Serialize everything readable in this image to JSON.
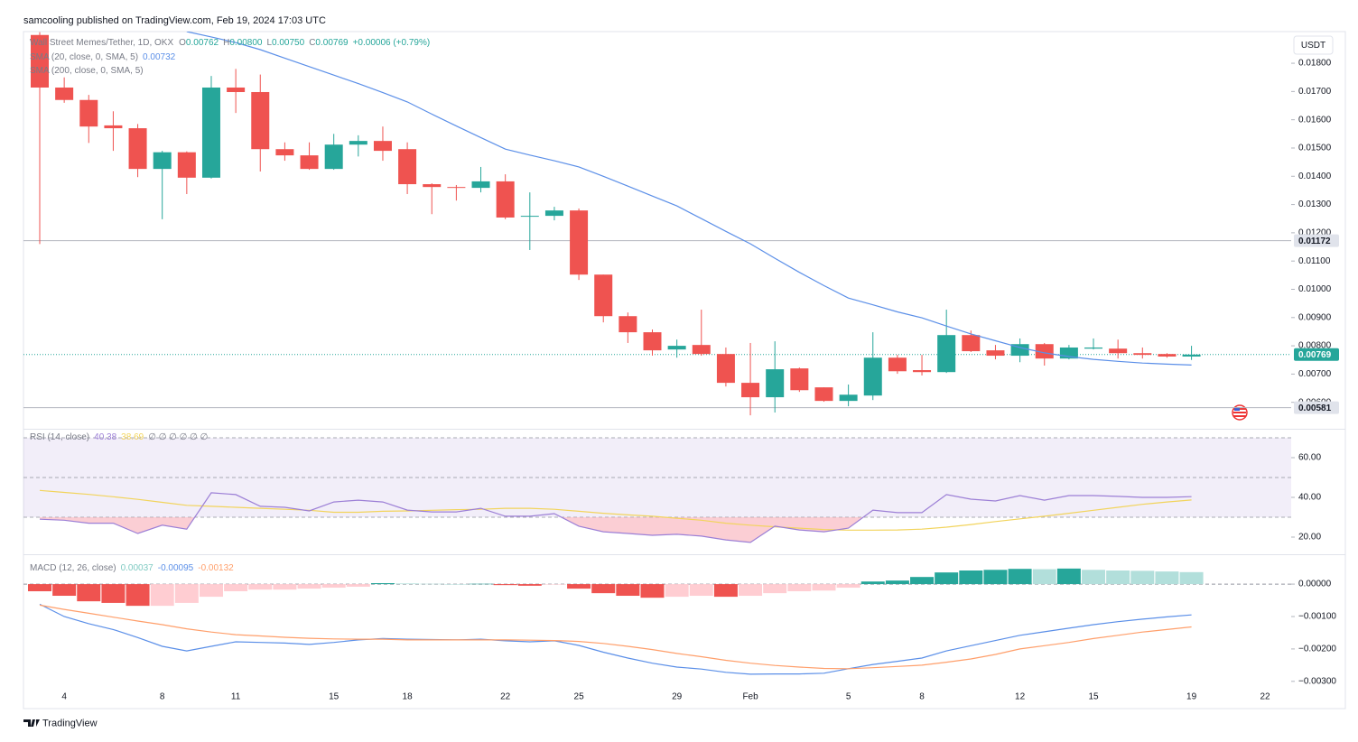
{
  "header": "samcooling published on TradingView.com, Feb 19, 2024 17:03 UTC",
  "footer": "TradingView",
  "chart_data": [
    {
      "type": "candlestick",
      "title": "Wall Street Memes/Tether, 1D, OKX",
      "ohlc_legend": [
        {
          "label": "O",
          "value": "0.00762"
        },
        {
          "label": "H",
          "value": "0.00800"
        },
        {
          "label": "L",
          "value": "0.00750"
        },
        {
          "label": "C",
          "value": "0.00769"
        }
      ],
      "change": "+0.00006 (+0.79%)",
      "currency": "USDT",
      "up_color": "#26a69a",
      "down_color": "#ef5350",
      "open": [
        0.019,
        0.01714,
        0.0167,
        0.0158,
        0.0157,
        0.01426,
        0.01485,
        0.01395,
        0.01714,
        0.01698,
        0.01496,
        0.01474,
        0.01426,
        0.01512,
        0.01525,
        0.01496,
        0.01372,
        0.01362,
        0.01359,
        0.01382,
        0.01257,
        0.0126,
        0.01279,
        0.01052,
        0.00905,
        0.00848,
        0.00787,
        0.00803,
        0.00771,
        0.00669,
        0.00618,
        0.0072,
        0.00653,
        0.00605,
        0.00624,
        0.00758,
        0.00714,
        0.00707,
        0.00838,
        0.00784,
        0.00765,
        0.00806,
        0.00755,
        0.0079,
        0.0079,
        0.00774,
        0.00771,
        0.00762,
        null,
        null,
        null
      ],
      "high": [
        0.0191,
        0.0175,
        0.01688,
        0.0163,
        0.01585,
        0.0149,
        0.01488,
        0.01755,
        0.0178,
        0.0176,
        0.0152,
        0.0152,
        0.0155,
        0.01545,
        0.01576,
        0.0152,
        0.01375,
        0.01369,
        0.01433,
        0.01407,
        0.01343,
        0.01292,
        0.01286,
        0.01052,
        0.00918,
        0.00858,
        0.00822,
        0.00928,
        0.00794,
        0.0081,
        0.00816,
        0.00723,
        0.00653,
        0.00663,
        0.00848,
        0.00768,
        0.00768,
        0.00928,
        0.00854,
        0.00803,
        0.00826,
        0.0081,
        0.00803,
        0.00826,
        0.00822,
        0.00794,
        0.00774,
        0.008,
        null,
        null,
        null
      ],
      "low": [
        0.0116,
        0.0166,
        0.01518,
        0.0149,
        0.01397,
        0.01248,
        0.01337,
        0.01392,
        0.01624,
        0.01417,
        0.01455,
        0.01423,
        0.01423,
        0.0147,
        0.01455,
        0.01337,
        0.01266,
        0.01314,
        0.01343,
        0.01248,
        0.01139,
        0.01244,
        0.01033,
        0.00883,
        0.0081,
        0.00765,
        0.00758,
        0.00765,
        0.00656,
        0.00554,
        0.00564,
        0.00637,
        0.00602,
        0.00586,
        0.00608,
        0.00701,
        0.00695,
        0.00704,
        0.00778,
        0.00752,
        0.00742,
        0.0073,
        0.00752,
        0.00787,
        0.00755,
        0.00755,
        0.00758,
        0.0075,
        null,
        null,
        null
      ],
      "close": [
        0.01714,
        0.0167,
        0.01576,
        0.0157,
        0.01426,
        0.01485,
        0.01395,
        0.01714,
        0.01698,
        0.01496,
        0.01474,
        0.01426,
        0.01512,
        0.01525,
        0.0149,
        0.01372,
        0.01362,
        0.01359,
        0.01382,
        0.01254,
        0.0126,
        0.01279,
        0.01052,
        0.00905,
        0.00848,
        0.00784,
        0.008,
        0.00771,
        0.00669,
        0.00618,
        0.00717,
        0.00643,
        0.00605,
        0.00627,
        0.00758,
        0.0071,
        0.00707,
        0.00838,
        0.00781,
        0.00765,
        0.00806,
        0.00755,
        0.00794,
        0.00794,
        0.00774,
        0.00768,
        0.00762,
        0.00769,
        null,
        null,
        null
      ],
      "series": [
        {
          "name": "SMA (20, close, 0, SMA, 5)",
          "value_label": "0.00732",
          "color": "#5b8fe8",
          "values": [
            null,
            null,
            null,
            null,
            null,
            null,
            0.01912,
            0.01893,
            0.01873,
            0.01848,
            0.01818,
            0.01788,
            0.01758,
            0.01728,
            0.01696,
            0.01663,
            0.0162,
            0.01578,
            0.01537,
            0.01496,
            0.01475,
            0.01455,
            0.01433,
            0.014,
            0.01365,
            0.0133,
            0.01295,
            0.0125,
            0.01205,
            0.01161,
            0.0111,
            0.0106,
            0.01013,
            0.00969,
            0.00945,
            0.0092,
            0.00899,
            0.0087,
            0.00842,
            0.00818,
            0.00794,
            0.00775,
            0.00762,
            0.00752,
            0.00745,
            0.00739,
            0.00735,
            0.00732,
            null,
            null,
            null
          ]
        }
      ],
      "extra_legend": "SMA (200, close, 0, SMA, 5)",
      "ylim": [
        0.00516,
        0.01912
      ],
      "yticks": [
        {
          "value": 0.018,
          "label": "0.01800"
        },
        {
          "value": 0.017,
          "label": "0.01700"
        },
        {
          "value": 0.016,
          "label": "0.01600"
        },
        {
          "value": 0.015,
          "label": "0.01500"
        },
        {
          "value": 0.014,
          "label": "0.01400"
        },
        {
          "value": 0.013,
          "label": "0.01300"
        },
        {
          "value": 0.012,
          "label": "0.01200"
        },
        {
          "value": 0.011,
          "label": "0.01100"
        },
        {
          "value": 0.01,
          "label": "0.01000"
        },
        {
          "value": 0.009,
          "label": "0.00900"
        },
        {
          "value": 0.008,
          "label": "0.00800"
        },
        {
          "value": 0.007,
          "label": "0.00700"
        },
        {
          "value": 0.006,
          "label": "0.00600"
        }
      ],
      "price_lines": [
        {
          "value": 0.01172,
          "label": "0.01172"
        },
        {
          "value": 0.00581,
          "label": "0.00581"
        }
      ],
      "last_price": {
        "value": 0.00769,
        "label": "0.00769"
      }
    },
    {
      "type": "rsi",
      "title": "RSI (14, close)",
      "legend_extra": "∅ ∅ ∅ ∅ ∅ ∅",
      "series": [
        {
          "value_label": "40.38",
          "color": "#9c7fd6",
          "values": [
            29,
            28.5,
            27,
            27,
            21.8,
            26,
            24,
            42.3,
            41.4,
            35.5,
            35,
            33.2,
            37.7,
            38.6,
            37.7,
            33.6,
            32.7,
            32.7,
            34.5,
            30.5,
            30.5,
            31.8,
            25.5,
            22.7,
            21.8,
            20.9,
            21.4,
            20.5,
            18.6,
            17.3,
            25.5,
            23.6,
            22.7,
            24.5,
            33.6,
            32.3,
            32.3,
            41.4,
            39.1,
            38.2,
            40.9,
            38.6,
            40.9,
            40.9,
            40.5,
            40,
            40,
            40.38,
            null,
            null,
            null
          ]
        },
        {
          "value_label": "38.69",
          "color": "#f2d45c",
          "values": [
            43.5,
            42.5,
            41.5,
            40.3,
            39,
            37.5,
            36,
            35.5,
            35,
            34.5,
            34,
            33.5,
            32.5,
            32.5,
            33,
            33.2,
            33.5,
            33.8,
            34,
            34.5,
            34.5,
            34,
            33,
            32,
            31.2,
            30.5,
            29.5,
            28.5,
            27,
            26,
            25.2,
            24.5,
            23.8,
            23.5,
            23.5,
            23.6,
            24,
            25,
            26.3,
            27.8,
            29.2,
            30.5,
            32,
            33.5,
            35,
            36.5,
            37.7,
            38.69,
            null,
            null,
            null
          ]
        }
      ],
      "bands": [
        70,
        50,
        30
      ],
      "band_color": "#7e57c2",
      "fill_color": "#f7a6b0",
      "ylim": [
        12.27,
        73.18
      ],
      "yticks": [
        {
          "value": 60,
          "label": "60.00"
        },
        {
          "value": 40,
          "label": "40.00"
        },
        {
          "value": 20,
          "label": "20.00"
        }
      ]
    },
    {
      "type": "macd",
      "title": "MACD (12, 26, close)",
      "categories": [
        null,
        "4",
        null,
        null,
        null,
        "8",
        null,
        null,
        "11",
        null,
        null,
        null,
        "15",
        null,
        null,
        "18",
        null,
        null,
        null,
        "22",
        null,
        null,
        "25",
        null,
        null,
        null,
        "29",
        null,
        null,
        "Feb",
        null,
        null,
        null,
        "5",
        null,
        null,
        "8",
        null,
        null,
        null,
        "12",
        null,
        null,
        "15",
        null,
        null,
        null,
        "19",
        null,
        null,
        "22"
      ],
      "histogram": {
        "value_label": "0.00037",
        "label_color": "#7fcac2",
        "colors": {
          "up_grow": "#26a69a",
          "up_fall": "#b2dfdb",
          "down_fall": "#ef5350",
          "down_rise": "#ffcdd2"
        },
        "values": [
          -0.00022,
          -0.00036,
          -0.00053,
          -0.00058,
          -0.00067,
          -0.00067,
          -0.00058,
          -0.00039,
          -0.00022,
          -0.00017,
          -0.00017,
          -0.00014,
          -0.00011,
          -8e-05,
          3e-05,
          2e-05,
          1e-05,
          0,
          1e-05,
          -3e-05,
          -5e-05,
          -1e-05,
          -0.00014,
          -0.00028,
          -0.00036,
          -0.00042,
          -0.00039,
          -0.00036,
          -0.00039,
          -0.00036,
          -0.00028,
          -0.00022,
          -0.0002,
          -0.00011,
          8e-05,
          0.00011,
          0.00022,
          0.00036,
          0.00042,
          0.00044,
          0.00047,
          0.00046,
          0.00048,
          0.00044,
          0.00042,
          0.00041,
          0.00039,
          0.00037,
          null,
          null,
          null
        ]
      },
      "series": [
        {
          "value_label": "-0.00095",
          "color": "#5b8fe8",
          "values": [
            -0.00062,
            -0.001,
            -0.00122,
            -0.0014,
            -0.00165,
            -0.00192,
            -0.00206,
            -0.00192,
            -0.00178,
            -0.0018,
            -0.00182,
            -0.00186,
            -0.0018,
            -0.00172,
            -0.00168,
            -0.0017,
            -0.00171,
            -0.00172,
            -0.0017,
            -0.00175,
            -0.00178,
            -0.00175,
            -0.00189,
            -0.0021,
            -0.00228,
            -0.00244,
            -0.00256,
            -0.00262,
            -0.00272,
            -0.00278,
            -0.00277,
            -0.00277,
            -0.00275,
            -0.00261,
            -0.00248,
            -0.00238,
            -0.00228,
            -0.00206,
            -0.0019,
            -0.00174,
            -0.00158,
            -0.00147,
            -0.00136,
            -0.00125,
            -0.00116,
            -0.00108,
            -0.00101,
            -0.00095,
            null,
            null,
            null
          ]
        },
        {
          "value_label": "-0.00132",
          "color": "#ff9f6b",
          "values": [
            -0.00065,
            -0.00078,
            -0.0009,
            -0.00102,
            -0.00114,
            -0.00125,
            -0.00138,
            -0.00148,
            -0.00156,
            -0.0016,
            -0.00164,
            -0.00167,
            -0.00169,
            -0.0017,
            -0.0017,
            -0.00172,
            -0.00172,
            -0.00172,
            -0.00172,
            -0.00172,
            -0.00173,
            -0.00174,
            -0.00177,
            -0.00183,
            -0.00192,
            -0.00202,
            -0.00214,
            -0.00224,
            -0.00235,
            -0.00244,
            -0.00251,
            -0.00256,
            -0.0026,
            -0.00261,
            -0.00258,
            -0.00254,
            -0.0025,
            -0.00241,
            -0.00231,
            -0.00217,
            -0.002,
            -0.0019,
            -0.0018,
            -0.00168,
            -0.00158,
            -0.00148,
            -0.0014,
            -0.00132,
            null,
            null,
            null
          ]
        }
      ],
      "baseline": 0,
      "ylim": [
        -0.0032,
        0.00081
      ],
      "yticks": [
        {
          "value": 0,
          "label": "0.00000"
        },
        {
          "value": -0.001,
          "label": "−0.00100"
        },
        {
          "value": -0.002,
          "label": "−0.00200"
        },
        {
          "value": -0.003,
          "label": "−0.00300"
        }
      ]
    }
  ]
}
